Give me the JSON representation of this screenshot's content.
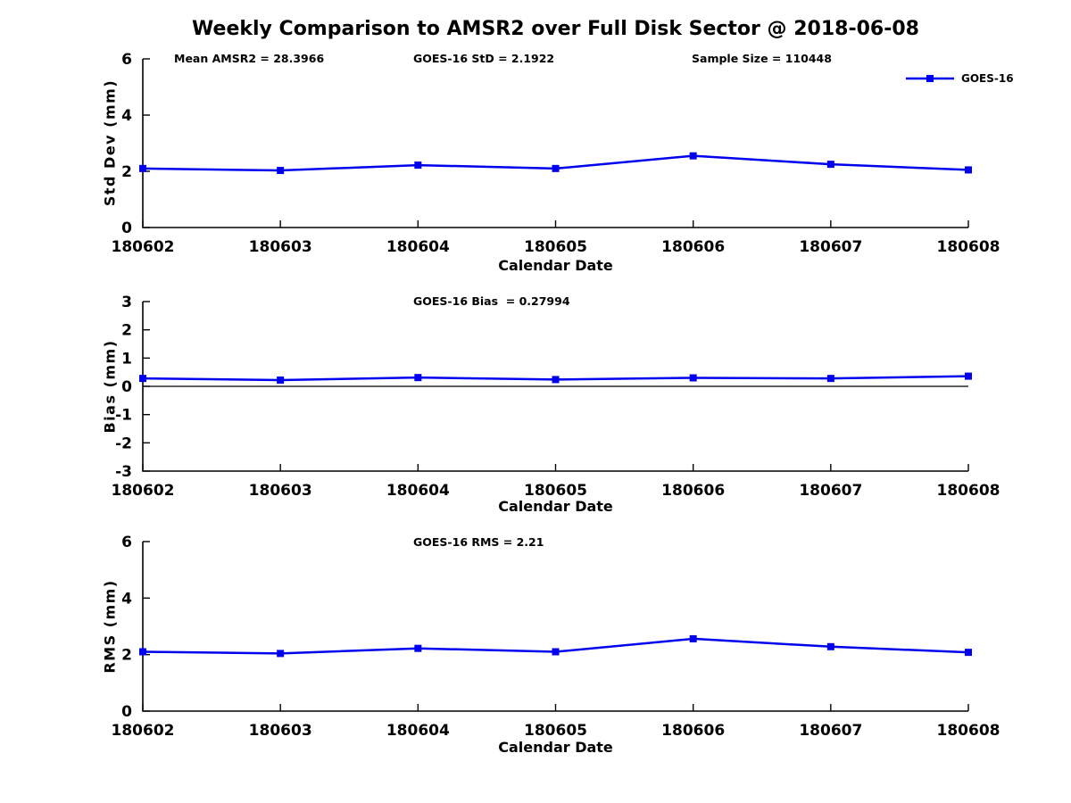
{
  "figure": {
    "title": "Weekly Comparison to AMSR2 over Full Disk Sector @ 2018-06-08"
  },
  "legend": {
    "label": "GOES-16",
    "color": "#0000EE",
    "position": "top-right"
  },
  "chart_data": [
    {
      "type": "line",
      "name": "std-dev",
      "ylabel": "Std Dev (mm)",
      "xlabel": "Calendar Date",
      "categories": [
        "180602",
        "180603",
        "180604",
        "180605",
        "180606",
        "180607",
        "180608"
      ],
      "ylim": [
        0,
        6
      ],
      "yticks": [
        0,
        2,
        4,
        6
      ],
      "grid": false,
      "zero_line": false,
      "annotations": [
        {
          "text": "Mean AMSR2 = 28.3966"
        },
        {
          "text": "GOES-16 StD = 2.1922"
        },
        {
          "text": "Sample Size = 110448"
        }
      ],
      "series": [
        {
          "name": "GOES-16",
          "color": "#0000EE",
          "marker": "square",
          "values": [
            2.1,
            2.03,
            2.22,
            2.1,
            2.55,
            2.25,
            2.05
          ]
        }
      ]
    },
    {
      "type": "line",
      "name": "bias",
      "ylabel": "Bias (mm)",
      "xlabel": "Calendar Date",
      "categories": [
        "180602",
        "180603",
        "180604",
        "180605",
        "180606",
        "180607",
        "180608"
      ],
      "ylim": [
        -3,
        3
      ],
      "yticks": [
        -3,
        -2,
        -1,
        0,
        1,
        2,
        3
      ],
      "grid": false,
      "zero_line": true,
      "annotations": [
        {
          "text": "GOES-16 Bias  = 0.27994"
        }
      ],
      "series": [
        {
          "name": "GOES-16",
          "color": "#0000EE",
          "marker": "square",
          "values": [
            0.28,
            0.22,
            0.31,
            0.24,
            0.3,
            0.28,
            0.36
          ]
        }
      ]
    },
    {
      "type": "line",
      "name": "rms",
      "ylabel": "RMS (mm)",
      "xlabel": "Calendar Date",
      "categories": [
        "180602",
        "180603",
        "180604",
        "180605",
        "180606",
        "180607",
        "180608"
      ],
      "ylim": [
        0,
        6
      ],
      "yticks": [
        0,
        2,
        4,
        6
      ],
      "grid": false,
      "zero_line": false,
      "annotations": [
        {
          "text": "GOES-16 RMS = 2.21"
        }
      ],
      "series": [
        {
          "name": "GOES-16",
          "color": "#0000EE",
          "marker": "square",
          "values": [
            2.1,
            2.04,
            2.22,
            2.1,
            2.56,
            2.28,
            2.08
          ]
        }
      ]
    }
  ]
}
